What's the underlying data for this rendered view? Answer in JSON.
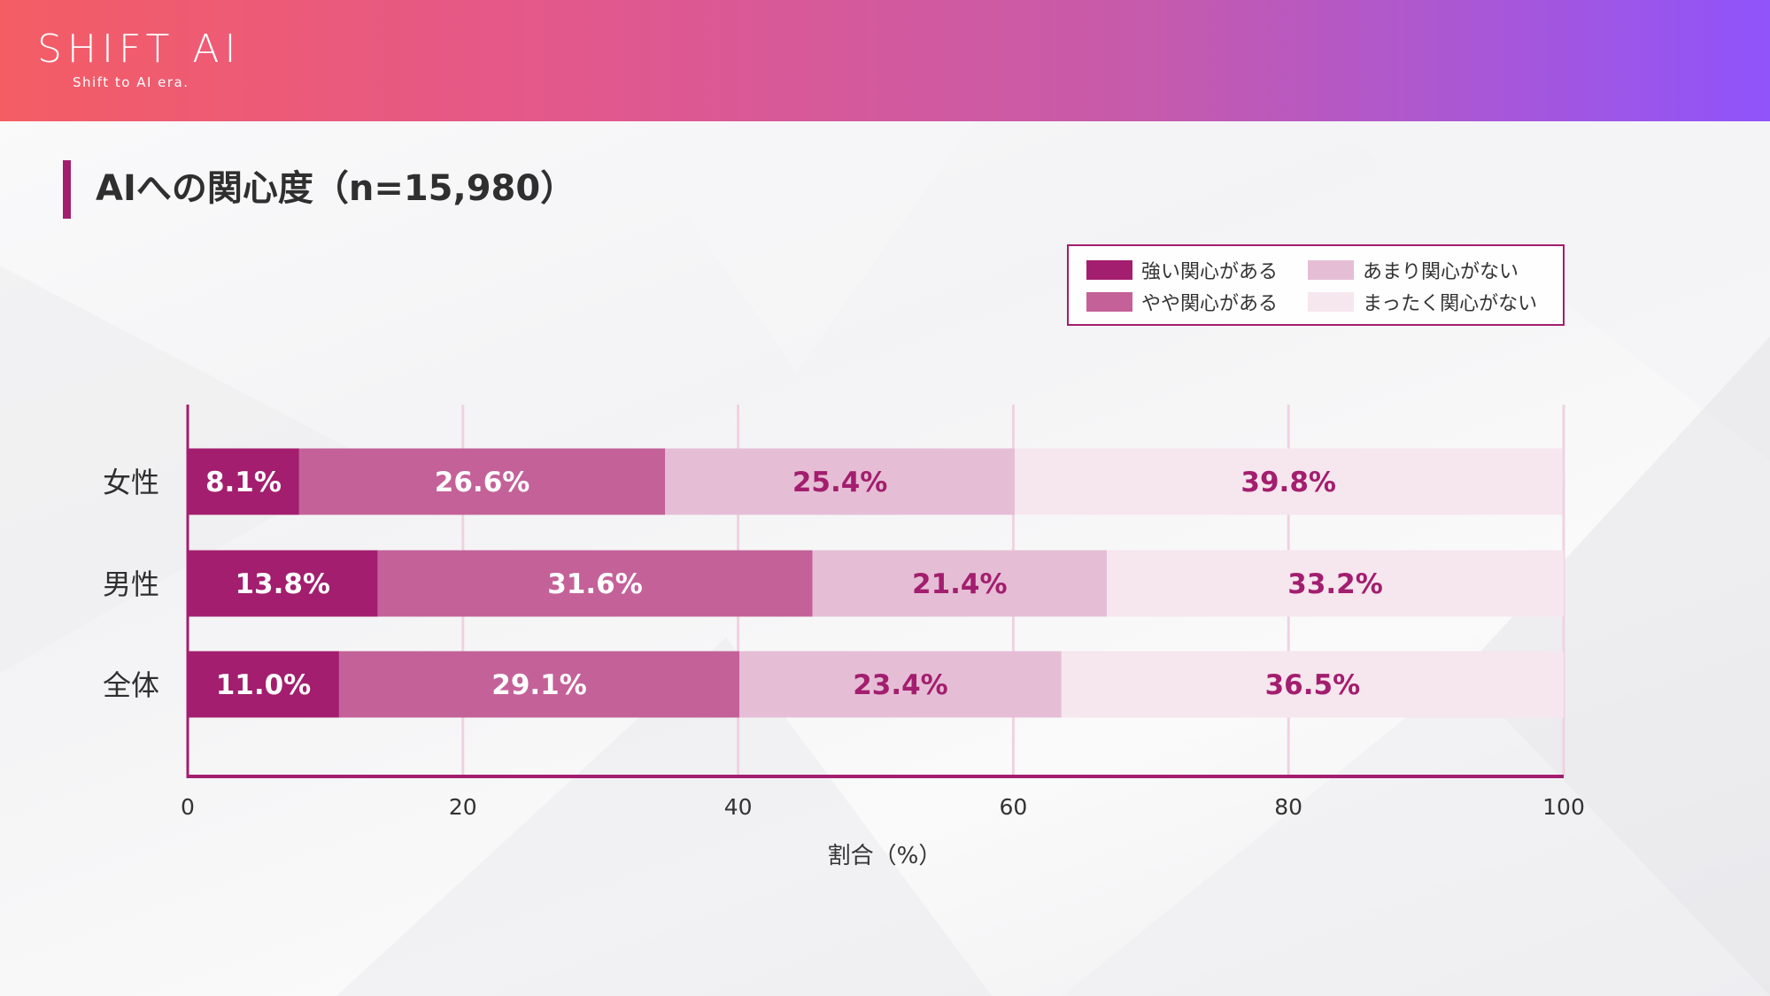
{
  "header": {
    "logo_text": "SHIFT AI",
    "logo_tagline": "Shift to AI era."
  },
  "page_title": "AIへの関心度（n=15,980）",
  "legend": [
    {
      "label": "強い関心がある",
      "color": "#a31e6e"
    },
    {
      "label": "やや関心がある",
      "color": "#c46198"
    },
    {
      "label": "あまり関心がない",
      "color": "#e5bed5"
    },
    {
      "label": "まったく関心がない",
      "color": "#f6e6ee"
    }
  ],
  "chart_data": {
    "type": "bar",
    "orientation": "horizontal",
    "stacked": true,
    "title": "AIへの関心度（n=15,980）",
    "categories": [
      "女性",
      "男性",
      "全体"
    ],
    "series": [
      {
        "name": "強い関心がある",
        "values": [
          8.1,
          13.8,
          11.0
        ],
        "labels": [
          "8.1%",
          "13.8%",
          "11.0%"
        ],
        "color": "#a31e6e",
        "label_color": "#ffffff"
      },
      {
        "name": "やや関心がある",
        "values": [
          26.6,
          31.6,
          29.1
        ],
        "labels": [
          "26.6%",
          "31.6%",
          "29.1%"
        ],
        "color": "#c46198",
        "label_color": "#ffffff"
      },
      {
        "name": "あまり関心がない",
        "values": [
          25.4,
          21.4,
          23.4
        ],
        "labels": [
          "25.4%",
          "21.4%",
          "23.4%"
        ],
        "color": "#e5bed5",
        "label_color": "#a31e6e"
      },
      {
        "name": "まったく関心がない",
        "values": [
          39.8,
          33.2,
          36.5
        ],
        "labels": [
          "39.8%",
          "33.2%",
          "36.5%"
        ],
        "color": "#f6e6ee",
        "label_color": "#a31e6e"
      }
    ],
    "xlabel": "割合（%）",
    "ylabel": "",
    "xlim": [
      0,
      100
    ],
    "xticks": [
      0,
      20,
      40,
      60,
      80,
      100
    ],
    "xtick_labels": [
      "0",
      "20",
      "40",
      "60",
      "80",
      "100"
    ],
    "grid": true,
    "legend_position": "top-right",
    "axis_color": "#a31e6e",
    "grid_color": "#f0d2e1"
  }
}
